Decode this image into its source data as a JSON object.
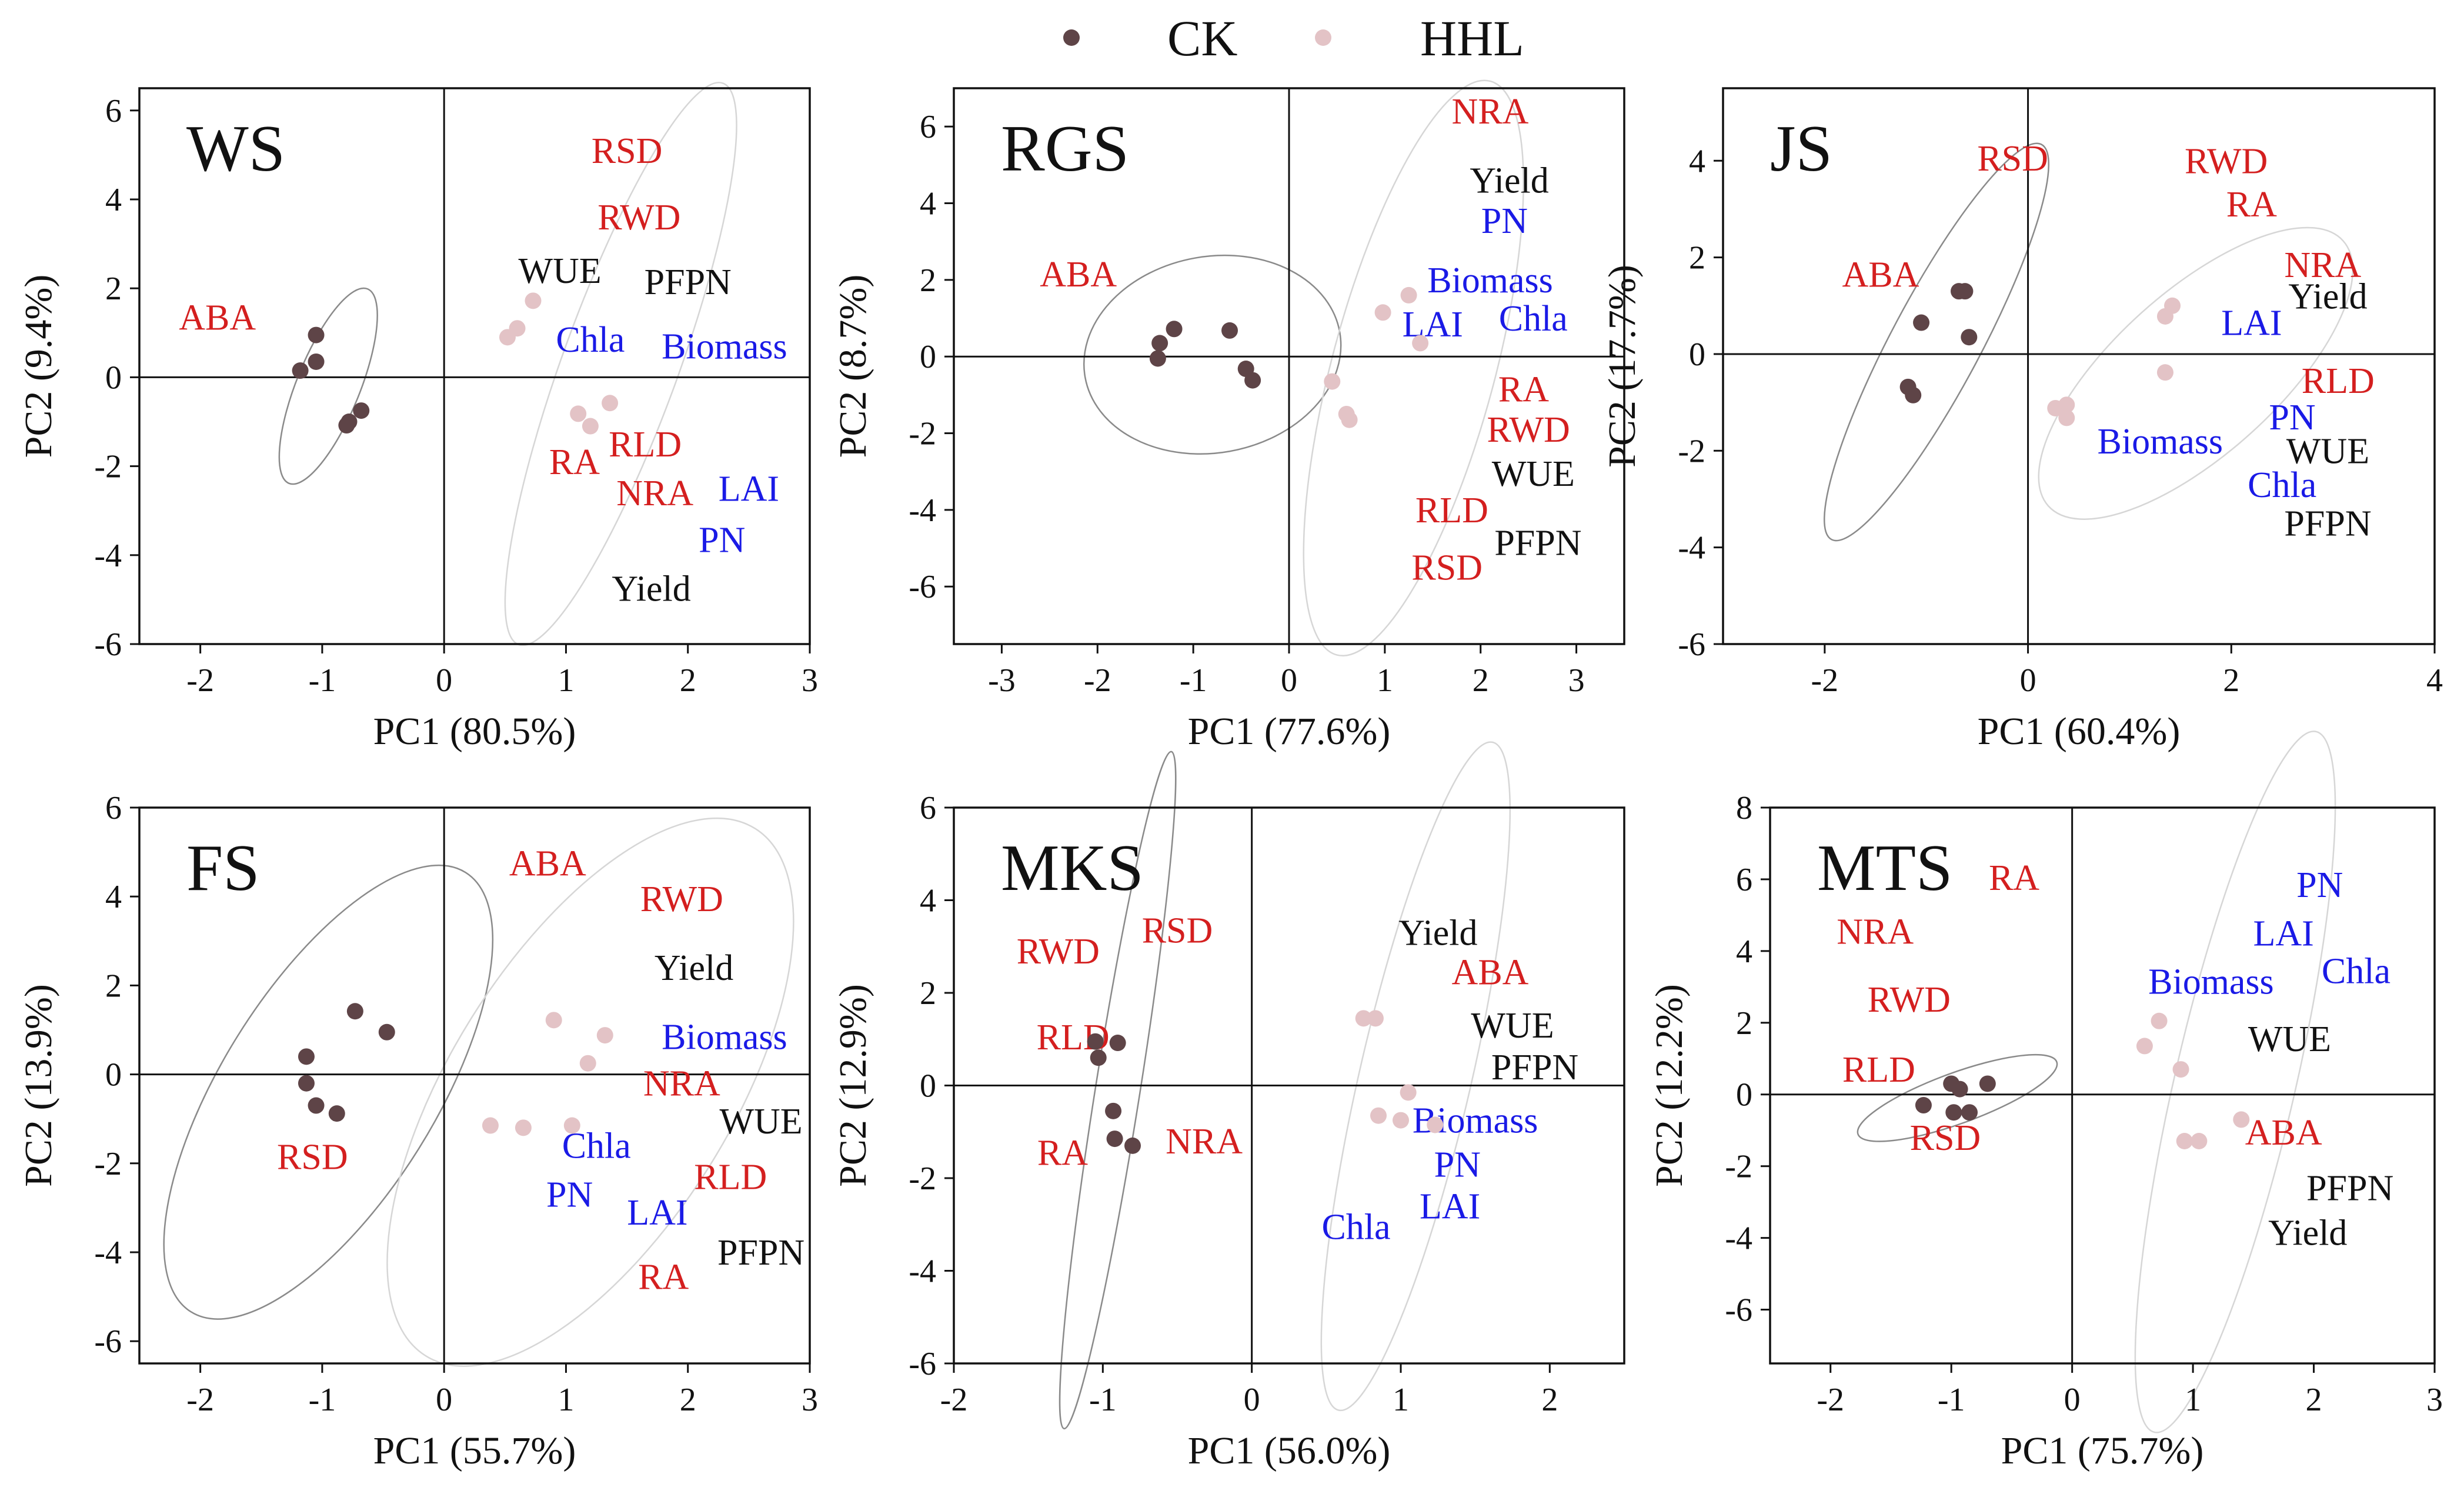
{
  "legend": [
    {
      "name": "CK",
      "color": "#5e4447"
    },
    {
      "name": "HHL",
      "color": "#e3c3c6"
    }
  ],
  "colors": {
    "red": "#d41f1f",
    "blue": "#1a1ae6",
    "black": "#111111",
    "ck": "#5e4447",
    "hhl": "#e3c3c6",
    "ellipse_ck": "#8a8a8a",
    "ellipse_hhl": "#d6d6d6"
  },
  "chart_data": [
    {
      "type": "scatter",
      "title": "WS",
      "xlabel": "PC1 (80.5%)",
      "ylabel": "PC2 (9.4%)",
      "xlim": [
        -2.5,
        3
      ],
      "ylim": [
        -6,
        6.5
      ],
      "xticks": [
        -2,
        -1,
        0,
        1,
        2,
        3
      ],
      "yticks": [
        -6,
        -4,
        -2,
        0,
        2,
        4,
        6
      ],
      "series": [
        {
          "name": "CK",
          "points": [
            [
              -1.05,
              0.95
            ],
            [
              -1.05,
              0.35
            ],
            [
              -1.18,
              0.15
            ],
            [
              -0.68,
              -0.75
            ],
            [
              -0.78,
              -1.0
            ],
            [
              -0.8,
              -1.08
            ]
          ]
        },
        {
          "name": "HHL",
          "points": [
            [
              0.73,
              1.72
            ],
            [
              0.6,
              1.1
            ],
            [
              0.52,
              0.9
            ],
            [
              1.36,
              -0.58
            ],
            [
              1.1,
              -0.82
            ],
            [
              1.2,
              -1.1
            ]
          ]
        }
      ],
      "ellipses": [
        {
          "group": "CK",
          "cx": -0.95,
          "cy": -0.2,
          "rx": 1.72,
          "ry": 0.52,
          "angle": -68
        },
        {
          "group": "HHL",
          "cx": 1.45,
          "cy": 0.3,
          "rx": 4.9,
          "ry": 0.95,
          "angle": -70
        }
      ],
      "variables": [
        {
          "name": "RSD",
          "x": 1.5,
          "y": 5.1,
          "color": "red"
        },
        {
          "name": "RWD",
          "x": 1.6,
          "y": 3.6,
          "color": "red"
        },
        {
          "name": "WUE",
          "x": 0.95,
          "y": 2.4,
          "color": "black"
        },
        {
          "name": "PFPN",
          "x": 2.0,
          "y": 2.15,
          "color": "black"
        },
        {
          "name": "ABA",
          "x": -1.86,
          "y": 1.35,
          "color": "red"
        },
        {
          "name": "Chla",
          "x": 1.2,
          "y": 0.85,
          "color": "blue"
        },
        {
          "name": "Biomass",
          "x": 2.3,
          "y": 0.7,
          "color": "blue"
        },
        {
          "name": "RLD",
          "x": 1.65,
          "y": -1.5,
          "color": "red"
        },
        {
          "name": "RA",
          "x": 1.07,
          "y": -1.9,
          "color": "red"
        },
        {
          "name": "NRA",
          "x": 1.73,
          "y": -2.6,
          "color": "red"
        },
        {
          "name": "LAI",
          "x": 2.5,
          "y": -2.5,
          "color": "blue"
        },
        {
          "name": "PN",
          "x": 2.28,
          "y": -3.65,
          "color": "blue"
        },
        {
          "name": "Yield",
          "x": 1.7,
          "y": -4.75,
          "color": "black"
        }
      ]
    },
    {
      "type": "scatter",
      "title": "RGS",
      "xlabel": "PC1 (77.6%)",
      "ylabel": "PC2 (8.7%)",
      "xlim": [
        -3.5,
        3.5
      ],
      "ylim": [
        -7.5,
        7
      ],
      "xticks": [
        -3,
        -2,
        -1,
        0,
        1,
        2,
        3
      ],
      "yticks": [
        -6,
        -4,
        -2,
        0,
        2,
        4,
        6
      ],
      "series": [
        {
          "name": "CK",
          "points": [
            [
              -1.2,
              0.72
            ],
            [
              -1.35,
              0.35
            ],
            [
              -1.37,
              -0.05
            ],
            [
              -0.62,
              0.68
            ],
            [
              -0.45,
              -0.32
            ],
            [
              -0.38,
              -0.62
            ]
          ]
        },
        {
          "name": "HHL",
          "points": [
            [
              1.25,
              1.6
            ],
            [
              0.98,
              1.15
            ],
            [
              1.37,
              0.35
            ],
            [
              0.45,
              -0.65
            ],
            [
              0.6,
              -1.5
            ],
            [
              0.63,
              -1.65
            ]
          ]
        }
      ],
      "ellipses": [
        {
          "group": "CK",
          "cx": -0.8,
          "cy": 0.05,
          "rx": 2.7,
          "ry": 2.05,
          "angle": -10
        },
        {
          "group": "HHL",
          "cx": 1.3,
          "cy": -0.3,
          "rx": 6.2,
          "ry": 1.7,
          "angle": -75
        }
      ],
      "variables": [
        {
          "name": "NRA",
          "x": 2.1,
          "y": 6.4,
          "color": "red"
        },
        {
          "name": "Yield",
          "x": 2.3,
          "y": 4.6,
          "color": "black"
        },
        {
          "name": "PN",
          "x": 2.25,
          "y": 3.55,
          "color": "blue"
        },
        {
          "name": "ABA",
          "x": -2.2,
          "y": 2.15,
          "color": "red"
        },
        {
          "name": "Biomass",
          "x": 2.1,
          "y": 2.0,
          "color": "blue"
        },
        {
          "name": "Chla",
          "x": 2.55,
          "y": 1.0,
          "color": "blue"
        },
        {
          "name": "LAI",
          "x": 1.5,
          "y": 0.85,
          "color": "blue"
        },
        {
          "name": "RA",
          "x": 2.45,
          "y": -0.85,
          "color": "red"
        },
        {
          "name": "RWD",
          "x": 2.5,
          "y": -1.9,
          "color": "red"
        },
        {
          "name": "WUE",
          "x": 2.55,
          "y": -3.05,
          "color": "black"
        },
        {
          "name": "RLD",
          "x": 1.7,
          "y": -4.0,
          "color": "red"
        },
        {
          "name": "PFPN",
          "x": 2.6,
          "y": -4.85,
          "color": "black"
        },
        {
          "name": "RSD",
          "x": 1.65,
          "y": -5.5,
          "color": "red"
        }
      ]
    },
    {
      "type": "scatter",
      "title": "JS",
      "xlabel": "PC1 (60.4%)",
      "ylabel": "PC2 (17.7%)",
      "xlim": [
        -3,
        4
      ],
      "ylim": [
        -6,
        5.5
      ],
      "xticks": [
        -2,
        0,
        2,
        4
      ],
      "yticks": [
        -6,
        -4,
        -2,
        0,
        2,
        4
      ],
      "series": [
        {
          "name": "CK",
          "points": [
            [
              -0.62,
              1.3
            ],
            [
              -0.68,
              1.3
            ],
            [
              -1.05,
              0.65
            ],
            [
              -0.58,
              0.35
            ],
            [
              -1.18,
              -0.68
            ],
            [
              -1.13,
              -0.85
            ]
          ]
        },
        {
          "name": "HHL",
          "points": [
            [
              1.42,
              1.0
            ],
            [
              1.35,
              0.78
            ],
            [
              1.35,
              -0.38
            ],
            [
              0.38,
              -1.05
            ],
            [
              0.27,
              -1.12
            ],
            [
              0.38,
              -1.32
            ]
          ]
        }
      ],
      "ellipses": [
        {
          "group": "CK",
          "cx": -0.9,
          "cy": 0.25,
          "rx": 4.4,
          "ry": 0.88,
          "angle": -62
        },
        {
          "group": "HHL",
          "cx": 1.65,
          "cy": -0.4,
          "rx": 3.9,
          "ry": 1.6,
          "angle": -42
        }
      ],
      "variables": [
        {
          "name": "RSD",
          "x": -0.15,
          "y": 4.05,
          "color": "red"
        },
        {
          "name": "RWD",
          "x": 1.95,
          "y": 4.0,
          "color": "red"
        },
        {
          "name": "RA",
          "x": 2.2,
          "y": 3.1,
          "color": "red"
        },
        {
          "name": "ABA",
          "x": -1.45,
          "y": 1.65,
          "color": "red"
        },
        {
          "name": "NRA",
          "x": 2.9,
          "y": 1.85,
          "color": "red"
        },
        {
          "name": "Yield",
          "x": 2.95,
          "y": 1.2,
          "color": "black"
        },
        {
          "name": "LAI",
          "x": 2.2,
          "y": 0.65,
          "color": "blue"
        },
        {
          "name": "RLD",
          "x": 3.05,
          "y": -0.55,
          "color": "red"
        },
        {
          "name": "PN",
          "x": 2.6,
          "y": -1.3,
          "color": "blue"
        },
        {
          "name": "Biomass",
          "x": 1.3,
          "y": -1.8,
          "color": "blue"
        },
        {
          "name": "WUE",
          "x": 2.95,
          "y": -2.0,
          "color": "black"
        },
        {
          "name": "Chla",
          "x": 2.5,
          "y": -2.7,
          "color": "blue"
        },
        {
          "name": "PFPN",
          "x": 2.95,
          "y": -3.5,
          "color": "black"
        }
      ]
    },
    {
      "type": "scatter",
      "title": "FS",
      "xlabel": "PC1 (55.7%)",
      "ylabel": "PC2 (13.9%)",
      "xlim": [
        -2.5,
        3
      ],
      "ylim": [
        -6.5,
        6
      ],
      "xticks": [
        -2,
        -1,
        0,
        1,
        2,
        3
      ],
      "yticks": [
        -6,
        -4,
        -2,
        0,
        2,
        4,
        6
      ],
      "series": [
        {
          "name": "CK",
          "points": [
            [
              -0.73,
              1.42
            ],
            [
              -0.47,
              0.95
            ],
            [
              -1.13,
              0.4
            ],
            [
              -1.13,
              -0.2
            ],
            [
              -1.05,
              -0.7
            ],
            [
              -0.88,
              -0.88
            ]
          ]
        },
        {
          "name": "HHL",
          "points": [
            [
              0.9,
              1.22
            ],
            [
              1.32,
              0.88
            ],
            [
              1.18,
              0.25
            ],
            [
              0.38,
              -1.15
            ],
            [
              0.65,
              -1.2
            ],
            [
              1.05,
              -1.15
            ]
          ]
        }
      ],
      "ellipses": [
        {
          "group": "CK",
          "cx": -0.95,
          "cy": -0.4,
          "rx": 4.25,
          "ry": 1.75,
          "angle": -58
        },
        {
          "group": "HHL",
          "cx": 1.2,
          "cy": -0.4,
          "rx": 5.1,
          "ry": 2.3,
          "angle": -58
        }
      ],
      "variables": [
        {
          "name": "ABA",
          "x": 0.85,
          "y": 4.75,
          "color": "red"
        },
        {
          "name": "RWD",
          "x": 1.95,
          "y": 3.95,
          "color": "red"
        },
        {
          "name": "Yield",
          "x": 2.05,
          "y": 2.4,
          "color": "black"
        },
        {
          "name": "Biomass",
          "x": 2.3,
          "y": 0.85,
          "color": "blue"
        },
        {
          "name": "NRA",
          "x": 1.95,
          "y": -0.2,
          "color": "red"
        },
        {
          "name": "WUE",
          "x": 2.6,
          "y": -1.05,
          "color": "black"
        },
        {
          "name": "Chla",
          "x": 1.25,
          "y": -1.6,
          "color": "blue"
        },
        {
          "name": "RSD",
          "x": -1.08,
          "y": -1.85,
          "color": "red"
        },
        {
          "name": "RLD",
          "x": 2.35,
          "y": -2.3,
          "color": "red"
        },
        {
          "name": "PN",
          "x": 1.03,
          "y": -2.7,
          "color": "blue"
        },
        {
          "name": "LAI",
          "x": 1.75,
          "y": -3.1,
          "color": "blue"
        },
        {
          "name": "PFPN",
          "x": 2.6,
          "y": -4.0,
          "color": "black"
        },
        {
          "name": "RA",
          "x": 1.8,
          "y": -4.55,
          "color": "red"
        }
      ]
    },
    {
      "type": "scatter",
      "title": "MKS",
      "xlabel": "PC1 (56.0%)",
      "ylabel": "PC2 (12.9%)",
      "xlim": [
        -2,
        2.5
      ],
      "ylim": [
        -6,
        6
      ],
      "xticks": [
        -2,
        -1,
        0,
        1,
        2
      ],
      "yticks": [
        -6,
        -4,
        -2,
        0,
        2,
        4,
        6
      ],
      "series": [
        {
          "name": "CK",
          "points": [
            [
              -1.05,
              0.95
            ],
            [
              -0.9,
              0.92
            ],
            [
              -1.03,
              0.6
            ],
            [
              -0.93,
              -0.55
            ],
            [
              -0.92,
              -1.15
            ],
            [
              -0.8,
              -1.3
            ]
          ]
        },
        {
          "name": "HHL",
          "points": [
            [
              0.75,
              1.45
            ],
            [
              0.83,
              1.45
            ],
            [
              1.05,
              -0.15
            ],
            [
              0.85,
              -0.65
            ],
            [
              1.0,
              -0.75
            ],
            [
              1.23,
              -0.85
            ]
          ]
        }
      ],
      "ellipses": [
        {
          "group": "CK",
          "cx": -0.9,
          "cy": -0.1,
          "rx": 4.6,
          "ry": 0.3,
          "angle": -81
        },
        {
          "group": "HHL",
          "cx": 1.1,
          "cy": 0.2,
          "rx": 4.6,
          "ry": 0.75,
          "angle": -77
        }
      ],
      "variables": [
        {
          "name": "Yield",
          "x": 1.25,
          "y": 3.3,
          "color": "black"
        },
        {
          "name": "RSD",
          "x": -0.5,
          "y": 3.35,
          "color": "red"
        },
        {
          "name": "RWD",
          "x": -1.3,
          "y": 2.9,
          "color": "red"
        },
        {
          "name": "ABA",
          "x": 1.6,
          "y": 2.45,
          "color": "red"
        },
        {
          "name": "WUE",
          "x": 1.75,
          "y": 1.3,
          "color": "black"
        },
        {
          "name": "RLD",
          "x": -1.2,
          "y": 1.05,
          "color": "red"
        },
        {
          "name": "PFPN",
          "x": 1.9,
          "y": 0.4,
          "color": "black"
        },
        {
          "name": "Biomass",
          "x": 1.5,
          "y": -0.75,
          "color": "blue"
        },
        {
          "name": "NRA",
          "x": -0.32,
          "y": -1.2,
          "color": "red"
        },
        {
          "name": "RA",
          "x": -1.27,
          "y": -1.45,
          "color": "red"
        },
        {
          "name": "PN",
          "x": 1.38,
          "y": -1.7,
          "color": "blue"
        },
        {
          "name": "LAI",
          "x": 1.33,
          "y": -2.6,
          "color": "blue"
        },
        {
          "name": "Chla",
          "x": 0.7,
          "y": -3.05,
          "color": "blue"
        }
      ]
    },
    {
      "type": "scatter",
      "title": "MTS",
      "xlabel": "PC1 (75.7%)",
      "ylabel": "PC2 (12.2%)",
      "xlim": [
        -2.5,
        3
      ],
      "ylim": [
        -7.5,
        8
      ],
      "xticks": [
        -2,
        -1,
        0,
        1,
        2,
        3
      ],
      "yticks": [
        -6,
        -4,
        -2,
        0,
        2,
        4,
        6,
        8
      ],
      "series": [
        {
          "name": "CK",
          "points": [
            [
              -1.0,
              0.3
            ],
            [
              -0.93,
              0.15
            ],
            [
              -0.7,
              0.3
            ],
            [
              -1.23,
              -0.3
            ],
            [
              -0.98,
              -0.5
            ],
            [
              -0.85,
              -0.5
            ]
          ]
        },
        {
          "name": "HHL",
          "points": [
            [
              0.72,
              2.05
            ],
            [
              0.6,
              1.35
            ],
            [
              0.9,
              0.7
            ],
            [
              1.4,
              -0.7
            ],
            [
              0.93,
              -1.3
            ],
            [
              1.05,
              -1.3
            ]
          ]
        }
      ],
      "ellipses": [
        {
          "group": "CK",
          "cx": -0.95,
          "cy": -0.1,
          "rx": 1.75,
          "ry": 0.42,
          "angle": -20
        },
        {
          "group": "HHL",
          "cx": 1.35,
          "cy": 0.35,
          "rx": 5.95,
          "ry": 1.0,
          "angle": -77
        }
      ],
      "variables": [
        {
          "name": "RA",
          "x": -0.48,
          "y": 6.05,
          "color": "red"
        },
        {
          "name": "PN",
          "x": 2.05,
          "y": 5.85,
          "color": "blue"
        },
        {
          "name": "NRA",
          "x": -1.63,
          "y": 4.55,
          "color": "red"
        },
        {
          "name": "LAI",
          "x": 1.75,
          "y": 4.5,
          "color": "blue"
        },
        {
          "name": "Chla",
          "x": 2.35,
          "y": 3.45,
          "color": "blue"
        },
        {
          "name": "Biomass",
          "x": 1.15,
          "y": 3.15,
          "color": "blue"
        },
        {
          "name": "RWD",
          "x": -1.35,
          "y": 2.65,
          "color": "red"
        },
        {
          "name": "WUE",
          "x": 1.8,
          "y": 1.55,
          "color": "black"
        },
        {
          "name": "RLD",
          "x": -1.6,
          "y": 0.7,
          "color": "red"
        },
        {
          "name": "RSD",
          "x": -1.05,
          "y": -1.2,
          "color": "red"
        },
        {
          "name": "ABA",
          "x": 1.75,
          "y": -1.05,
          "color": "red"
        },
        {
          "name": "PFPN",
          "x": 2.3,
          "y": -2.6,
          "color": "black"
        },
        {
          "name": "Yield",
          "x": 1.95,
          "y": -3.85,
          "color": "black"
        }
      ]
    }
  ]
}
